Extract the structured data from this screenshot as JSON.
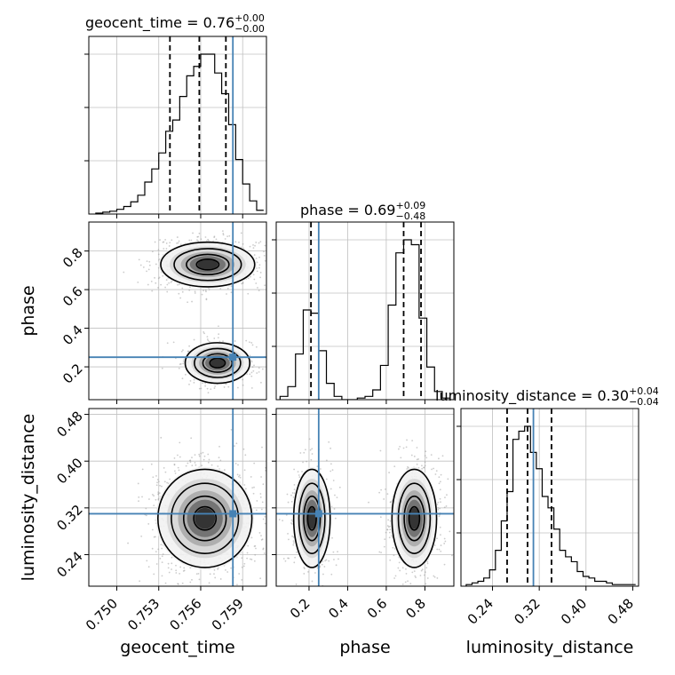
{
  "chart_data": {
    "type": "corner",
    "params": [
      "geocent_time",
      "phase",
      "luminosity_distance"
    ],
    "truths": {
      "geocent_time": 0.7583,
      "phase": 0.25,
      "luminosity_distance": 0.31
    },
    "colors": {
      "truth": "#4682b4",
      "hist": "#000000",
      "grid": "#c0c0c0",
      "points": "#9a9a9a"
    },
    "titles": {
      "geocent_time": {
        "prefix": "geocent_time = 0.76",
        "plus": "+0.00",
        "minus": "−0.00"
      },
      "phase": {
        "prefix": "phase = 0.69",
        "plus": "+0.09",
        "minus": "−0.48"
      },
      "luminosity_distance": {
        "prefix": "luminosity_distance = 0.30",
        "plus": "+0.04",
        "minus": "−0.04"
      }
    },
    "axis_labels": {
      "geocent_time": "geocent_time",
      "phase": "phase",
      "luminosity_distance": "luminosity_distance"
    },
    "ranges": {
      "geocent_time": [
        0.748,
        0.7607
      ],
      "phase": [
        0.03,
        0.95
      ],
      "luminosity_distance": [
        0.186,
        0.49
      ]
    },
    "ticks": {
      "geocent_time": [
        {
          "v": 0.75,
          "label": "0.750"
        },
        {
          "v": 0.753,
          "label": "0.753"
        },
        {
          "v": 0.756,
          "label": "0.756"
        },
        {
          "v": 0.759,
          "label": "0.759"
        }
      ],
      "phase": [
        {
          "v": 0.2,
          "label": "0.2"
        },
        {
          "v": 0.4,
          "label": "0.4"
        },
        {
          "v": 0.6,
          "label": "0.6"
        },
        {
          "v": 0.8,
          "label": "0.8"
        }
      ],
      "luminosity_distance": [
        {
          "v": 0.24,
          "label": "0.24"
        },
        {
          "v": 0.32,
          "label": "0.32"
        },
        {
          "v": 0.4,
          "label": "0.40"
        },
        {
          "v": 0.48,
          "label": "0.48"
        }
      ]
    },
    "quantiles": {
      "geocent_time": [
        0.7538,
        0.7559,
        0.7578
      ],
      "phase": [
        0.21,
        0.69,
        0.78
      ],
      "luminosity_distance": [
        0.265,
        0.3,
        0.341
      ]
    },
    "histograms": {
      "geocent_time": {
        "edges": [
          0.7485,
          0.749,
          0.7495,
          0.75,
          0.7505,
          0.751,
          0.7515,
          0.752,
          0.7525,
          0.753,
          0.7535,
          0.754,
          0.7545,
          0.755,
          0.7555,
          0.756,
          0.7565,
          0.757,
          0.7575,
          0.758,
          0.7585,
          0.759,
          0.7595,
          0.76,
          0.7605
        ],
        "counts": [
          1,
          2,
          3,
          5,
          8,
          13,
          20,
          34,
          48,
          65,
          88,
          100,
          125,
          147,
          157,
          170,
          170,
          150,
          128,
          95,
          58,
          32,
          14,
          4
        ]
      },
      "phase": {
        "edges": [
          0.05,
          0.09,
          0.13,
          0.17,
          0.21,
          0.25,
          0.29,
          0.33,
          0.37,
          0.41,
          0.45,
          0.49,
          0.53,
          0.57,
          0.61,
          0.65,
          0.69,
          0.73,
          0.77,
          0.81,
          0.85,
          0.89,
          0.93
        ],
        "counts": [
          2,
          8,
          28,
          55,
          53,
          30,
          10,
          2,
          0,
          0,
          1,
          2,
          6,
          21,
          58,
          90,
          98,
          95,
          50,
          20,
          5,
          1
        ]
      },
      "luminosity_distance": {
        "edges": [
          0.195,
          0.205,
          0.215,
          0.225,
          0.235,
          0.245,
          0.255,
          0.265,
          0.275,
          0.285,
          0.295,
          0.305,
          0.315,
          0.325,
          0.335,
          0.345,
          0.355,
          0.365,
          0.375,
          0.385,
          0.395,
          0.405,
          0.415,
          0.425,
          0.435,
          0.445,
          0.455,
          0.465,
          0.475,
          0.485
        ],
        "counts": [
          1,
          2,
          3,
          5,
          10,
          22,
          40,
          58,
          90,
          95,
          98,
          82,
          72,
          55,
          48,
          35,
          22,
          18,
          15,
          9,
          6,
          5,
          3,
          3,
          2,
          1,
          1,
          1,
          1
        ]
      }
    },
    "modes_2d": {
      "geocent_time-phase": [
        {
          "cx": 0.7565,
          "cy": 0.73,
          "sx": 0.0016,
          "sy": 0.055,
          "w": 0.62
        },
        {
          "cx": 0.7572,
          "cy": 0.22,
          "sx": 0.0011,
          "sy": 0.05,
          "w": 0.38
        }
      ],
      "geocent_time-luminosity_distance": [
        {
          "cx": 0.7563,
          "cy": 0.302,
          "sx": 0.0016,
          "sy": 0.04,
          "w": 1.0
        }
      ],
      "phase-luminosity_distance": [
        {
          "cx": 0.745,
          "cy": 0.302,
          "sx": 0.055,
          "sy": 0.04,
          "w": 0.62
        },
        {
          "cx": 0.215,
          "cy": 0.302,
          "sx": 0.045,
          "sy": 0.04,
          "w": 0.38
        }
      ]
    }
  }
}
